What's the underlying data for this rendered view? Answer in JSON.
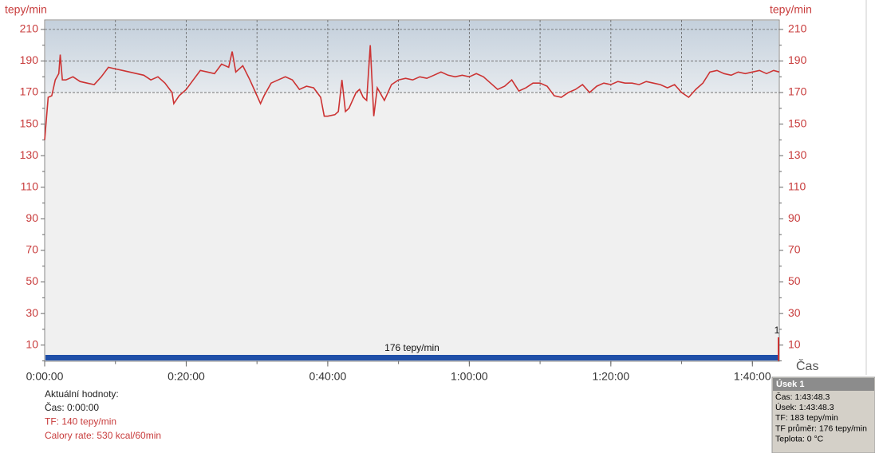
{
  "chart_data": {
    "type": "line",
    "y_label": "tepy/min",
    "y2_label": "tepy/min",
    "x_label": "Čas",
    "xlim": [
      0,
      6228
    ],
    "ylim": [
      0,
      216
    ],
    "xticks": [
      {
        "value": 0,
        "label": "0:00:00"
      },
      {
        "value": 1200,
        "label": "0:20:00"
      },
      {
        "value": 2400,
        "label": "0:40:00"
      },
      {
        "value": 3600,
        "label": "1:00:00"
      },
      {
        "value": 4800,
        "label": "1:20:00"
      },
      {
        "value": 6000,
        "label": "1:40:00"
      }
    ],
    "xgrid": [
      600,
      1200,
      1800,
      2400,
      3000,
      3600,
      4200,
      4800,
      5400,
      6000
    ],
    "yticks": [
      10,
      30,
      50,
      70,
      90,
      110,
      130,
      150,
      170,
      190,
      210
    ],
    "yminorticks": [
      0,
      20,
      40,
      60,
      80,
      100,
      120,
      140,
      160,
      180,
      200
    ],
    "ygrid": [
      170,
      190,
      210
    ],
    "zone_lower": 170,
    "series": [
      {
        "name": "TF",
        "color": "#cc3333",
        "x": [
          0,
          30,
          60,
          90,
          120,
          132,
          150,
          180,
          240,
          300,
          360,
          420,
          480,
          540,
          600,
          660,
          720,
          780,
          840,
          900,
          960,
          1020,
          1080,
          1095,
          1140,
          1200,
          1260,
          1320,
          1380,
          1440,
          1500,
          1560,
          1590,
          1620,
          1680,
          1740,
          1800,
          1830,
          1860,
          1920,
          1980,
          2040,
          2100,
          2160,
          2220,
          2280,
          2340,
          2370,
          2400,
          2460,
          2490,
          2520,
          2550,
          2580,
          2640,
          2670,
          2700,
          2730,
          2760,
          2790,
          2820,
          2880,
          2940,
          3000,
          3060,
          3120,
          3180,
          3240,
          3300,
          3360,
          3420,
          3480,
          3540,
          3600,
          3660,
          3720,
          3780,
          3840,
          3900,
          3960,
          4020,
          4080,
          4140,
          4200,
          4260,
          4320,
          4380,
          4440,
          4500,
          4560,
          4620,
          4680,
          4740,
          4800,
          4860,
          4920,
          4980,
          5040,
          5100,
          5160,
          5220,
          5280,
          5340,
          5400,
          5460,
          5520,
          5580,
          5640,
          5700,
          5760,
          5820,
          5880,
          5940,
          6000,
          6060,
          6120,
          6180,
          6228
        ],
        "values": [
          140,
          167,
          168,
          178,
          182,
          194,
          178,
          178,
          180,
          177,
          176,
          175,
          180,
          186,
          185,
          184,
          183,
          182,
          181,
          178,
          180,
          176,
          170,
          163,
          168,
          172,
          178,
          184,
          183,
          182,
          188,
          186,
          196,
          183,
          187,
          178,
          168,
          163,
          168,
          176,
          178,
          180,
          178,
          172,
          174,
          173,
          167,
          155,
          155,
          156,
          158,
          178,
          158,
          160,
          170,
          172,
          167,
          165,
          200,
          155,
          173,
          165,
          175,
          178,
          179,
          178,
          180,
          179,
          181,
          183,
          181,
          180,
          181,
          180,
          182,
          180,
          176,
          172,
          174,
          178,
          171,
          173,
          176,
          176,
          174,
          168,
          167,
          170,
          172,
          175,
          170,
          174,
          176,
          175,
          177,
          176,
          176,
          175,
          177,
          176,
          175,
          173,
          175,
          170,
          167,
          172,
          176,
          183,
          184,
          182,
          181,
          183,
          182,
          183,
          184,
          182,
          184,
          183
        ]
      }
    ],
    "average_label": "176 tepy/min",
    "lap_marker_label": "1",
    "info": {
      "title": "Aktuální hodnoty:",
      "lines": [
        "Čas: 0:00:00",
        "TF: 140 tepy/min",
        "Calory rate: 530 kcal/60min"
      ]
    },
    "tooltip": {
      "title": "Úsek 1",
      "lines": [
        "Čas: 1:43:48.3",
        "Úsek: 1:43:48.3",
        "TF: 183 tepy/min",
        "TF průměr:  176 tepy/min",
        "Teplota: 0 °C"
      ]
    }
  }
}
